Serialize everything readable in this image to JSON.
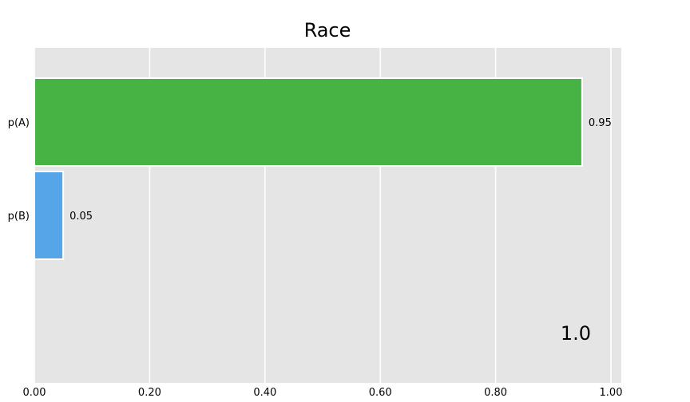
{
  "chart_data": {
    "type": "bar",
    "orientation": "horizontal",
    "title": "Race",
    "xlabel": "",
    "ylabel": "",
    "categories": [
      "p(A)",
      "p(B)"
    ],
    "values": [
      0.95,
      0.05
    ],
    "value_labels": [
      "0.95",
      "0.05"
    ],
    "colors": [
      "#46b344",
      "#56a5e8"
    ],
    "xlim": [
      0.0,
      1.0
    ],
    "xticks": [
      0.0,
      0.2,
      0.4,
      0.6,
      0.8,
      1.0
    ],
    "xtick_labels": [
      "0.00",
      "0.20",
      "0.40",
      "0.60",
      "0.80",
      "1.00"
    ],
    "annotation": "1.0",
    "grid": true,
    "background_color": "#e5e5e5",
    "grid_color": "#ffffff"
  }
}
